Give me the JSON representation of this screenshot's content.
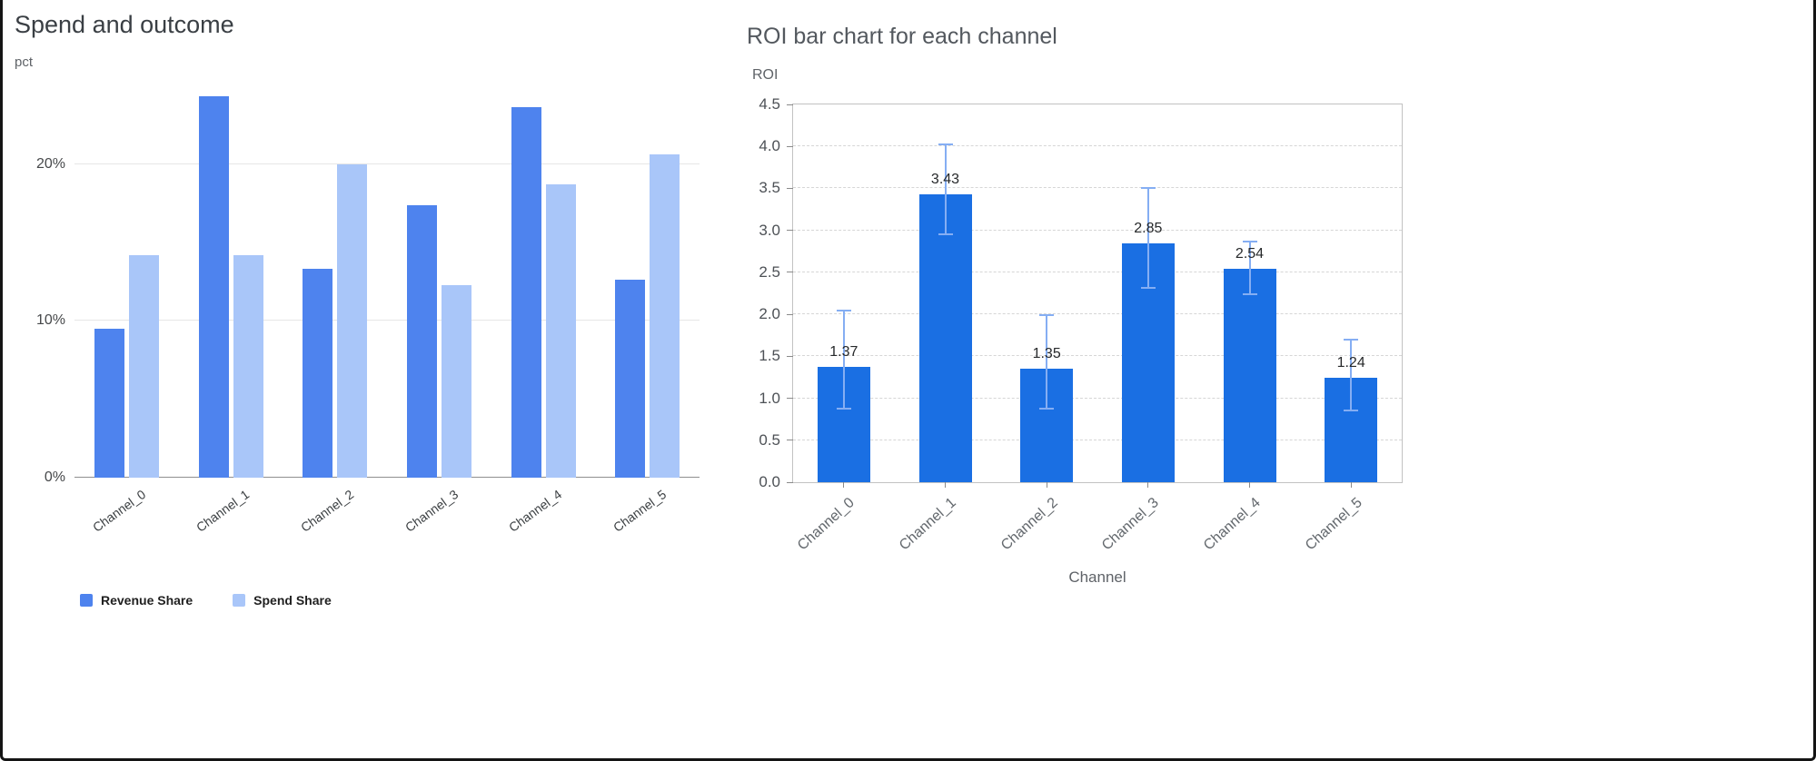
{
  "frame": {
    "border_color": "#141414"
  },
  "chart_data": [
    {
      "type": "bar",
      "title": "Spend and outcome",
      "ylabel": "pct",
      "xlabel": "",
      "categories": [
        "Channel_0",
        "Channel_1",
        "Channel_2",
        "Channel_3",
        "Channel_4",
        "Channel_5"
      ],
      "series": [
        {
          "name": "Revenue Share",
          "color": "#4e83ee",
          "values": [
            9.5,
            24.3,
            13.3,
            17.4,
            23.6,
            12.6
          ]
        },
        {
          "name": "Spend Share",
          "color": "#a9c6f9",
          "values": [
            14.2,
            14.2,
            20.0,
            12.3,
            18.7,
            20.6
          ]
        }
      ],
      "y_tick_labels": [
        "0%",
        "10%",
        "20%"
      ],
      "y_tick_values": [
        0,
        10,
        20
      ],
      "ylim": [
        0,
        24.9
      ],
      "grid": "solid",
      "legend_position": "bottom-left"
    },
    {
      "type": "bar",
      "title": "ROI bar chart for each channel",
      "xlabel": "Channel",
      "ylabel": "ROI",
      "categories": [
        "Channel_0",
        "Channel_1",
        "Channel_2",
        "Channel_3",
        "Channel_4",
        "Channel_5"
      ],
      "values": [
        1.37,
        3.43,
        1.35,
        2.85,
        2.54,
        1.24
      ],
      "bar_labels": [
        "1.37",
        "3.43",
        "1.35",
        "2.85",
        "2.54",
        "1.24"
      ],
      "error_low": [
        0.88,
        2.95,
        0.88,
        2.32,
        2.24,
        0.85
      ],
      "error_high": [
        2.04,
        4.02,
        1.99,
        3.51,
        2.87,
        1.7
      ],
      "bar_color": "#1a6fe3",
      "error_color": "#85aef3",
      "y_tick_labels": [
        "0.0",
        "0.5",
        "1.0",
        "1.5",
        "2.0",
        "2.5",
        "3.0",
        "3.5",
        "4.0",
        "4.5"
      ],
      "y_tick_values": [
        0,
        0.5,
        1,
        1.5,
        2,
        2.5,
        3,
        3.5,
        4,
        4.5
      ],
      "ylim": [
        0,
        4.5
      ],
      "grid": "dashed"
    }
  ]
}
